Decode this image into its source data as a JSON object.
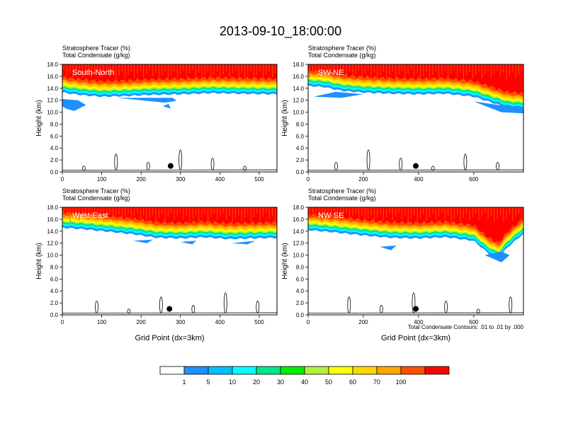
{
  "title": "2013-09-10_18:00:00",
  "colors": [
    "#ffffff",
    "#1e90ff",
    "#00bfff",
    "#00ffff",
    "#00e68c",
    "#00ee00",
    "#b4ee3c",
    "#ffff00",
    "#ffd700",
    "#ffa500",
    "#ff5000",
    "#ff0000"
  ],
  "panels": [
    {
      "label": "South-North",
      "line1": "Stratosphere Tracer   (%)",
      "line2": "Total Condensate   (g/kg)",
      "ylabel": "Height (km)",
      "xlabel": "",
      "note": "",
      "xmax": 545,
      "xticks": [
        0,
        100,
        200,
        300,
        400,
        500
      ],
      "profile": [
        [
          0,
          13.3
        ],
        [
          20,
          13.1
        ],
        [
          60,
          12.8
        ],
        [
          100,
          12.6
        ],
        [
          160,
          12.7
        ],
        [
          220,
          12.9
        ],
        [
          300,
          13.0
        ],
        [
          380,
          13.2
        ],
        [
          450,
          13.1
        ],
        [
          545,
          13.0
        ]
      ],
      "blue_patches": [
        [
          [
            0,
            12.2
          ],
          [
            40,
            12.0
          ],
          [
            60,
            11.2
          ],
          [
            30,
            10.2
          ],
          [
            10,
            10.6
          ],
          [
            0,
            11.0
          ]
        ],
        [
          [
            140,
            12.4
          ],
          [
            200,
            12.0
          ],
          [
            260,
            11.6
          ],
          [
            290,
            11.9
          ],
          [
            280,
            12.4
          ]
        ],
        [
          [
            255,
            11.0
          ],
          [
            275,
            10.6
          ],
          [
            270,
            11.4
          ]
        ]
      ],
      "dot": [
        275,
        1.0
      ]
    },
    {
      "label": "SW-NE",
      "line1": "Stratosphere Tracer   (%)",
      "line2": "Total Condensate   (g/kg)",
      "ylabel": "Height (km)",
      "xlabel": "",
      "note": "",
      "xmax": 780,
      "xticks": [
        0,
        200,
        400,
        600
      ],
      "profile": [
        [
          0,
          14.4
        ],
        [
          60,
          14.2
        ],
        [
          120,
          13.6
        ],
        [
          200,
          13.3
        ],
        [
          300,
          13.1
        ],
        [
          400,
          13.0
        ],
        [
          500,
          13.1
        ],
        [
          600,
          12.6
        ],
        [
          680,
          11.4
        ],
        [
          720,
          10.8
        ],
        [
          780,
          10.6
        ]
      ],
      "blue_patches": [
        [
          [
            20,
            12.6
          ],
          [
            120,
            12.4
          ],
          [
            200,
            13.0
          ],
          [
            100,
            13.4
          ]
        ],
        [
          [
            600,
            11.8
          ],
          [
            700,
            10.0
          ],
          [
            780,
            9.8
          ],
          [
            780,
            10.6
          ],
          [
            690,
            11.2
          ]
        ]
      ],
      "dot": [
        390,
        1.0
      ]
    },
    {
      "label": "West-East",
      "line1": "Stratosphere Tracer   (%)",
      "line2": "Total Condensate   (g/kg)",
      "ylabel": "Height (km)",
      "xlabel": "Grid Point (dx=3km)",
      "note": "",
      "xmax": 545,
      "xticks": [
        0,
        100,
        200,
        300,
        400,
        500
      ],
      "profile": [
        [
          0,
          14.6
        ],
        [
          60,
          14.3
        ],
        [
          120,
          13.9
        ],
        [
          180,
          13.5
        ],
        [
          240,
          12.9
        ],
        [
          300,
          12.8
        ],
        [
          360,
          13.0
        ],
        [
          420,
          12.7
        ],
        [
          480,
          12.8
        ],
        [
          545,
          12.9
        ]
      ],
      "blue_patches": [
        [
          [
            180,
            12.4
          ],
          [
            215,
            12.0
          ],
          [
            230,
            12.6
          ]
        ],
        [
          [
            300,
            12.2
          ],
          [
            330,
            11.8
          ],
          [
            340,
            12.4
          ]
        ],
        [
          [
            430,
            12.0
          ],
          [
            470,
            11.8
          ],
          [
            490,
            12.4
          ]
        ]
      ],
      "dot": [
        272,
        1.0
      ]
    },
    {
      "label": "NW-SE",
      "line1": "Stratosphere Tracer   (%)",
      "line2": "Total Condensate   (g/kg)",
      "ylabel": "Height (km)",
      "xlabel": "Grid Point (dx=3km)",
      "note": "Total Condensate Contours: .01 to .01 by .000",
      "xmax": 780,
      "xticks": [
        0,
        200,
        400,
        600
      ],
      "profile": [
        [
          0,
          14.2
        ],
        [
          100,
          13.8
        ],
        [
          200,
          13.3
        ],
        [
          300,
          12.9
        ],
        [
          400,
          12.8
        ],
        [
          500,
          13.0
        ],
        [
          600,
          12.4
        ],
        [
          650,
          10.4
        ],
        [
          690,
          9.4
        ],
        [
          720,
          11.2
        ],
        [
          780,
          13.6
        ]
      ],
      "blue_patches": [
        [
          [
            260,
            11.4
          ],
          [
            300,
            10.8
          ],
          [
            320,
            11.6
          ]
        ],
        [
          [
            640,
            10.0
          ],
          [
            700,
            8.8
          ],
          [
            730,
            10.0
          ],
          [
            700,
            10.6
          ]
        ]
      ],
      "dot": [
        390,
        1.0
      ]
    }
  ],
  "chart_data": {
    "type": "heatmap",
    "title": "2013-09-10_18:00:00",
    "variables": [
      "Stratosphere Tracer (%)",
      "Total Condensate (g/kg)"
    ],
    "ylim": [
      0,
      18
    ],
    "yticks": [
      0.0,
      2.0,
      4.0,
      6.0,
      8.0,
      10.0,
      12.0,
      14.0,
      16.0,
      18.0
    ],
    "ytick_labels": [
      "0.0",
      "2.0",
      "4.0",
      "6.0",
      "8.0",
      "10.0",
      "12.0",
      "14.0",
      "16.0",
      "18.0"
    ],
    "colorbar_levels": [
      "1",
      "5",
      "10",
      "20",
      "30",
      "40",
      "50",
      "60",
      "70",
      "100"
    ],
    "panels": [
      "South-North",
      "SW-NE",
      "West-East",
      "NW-SE"
    ]
  }
}
